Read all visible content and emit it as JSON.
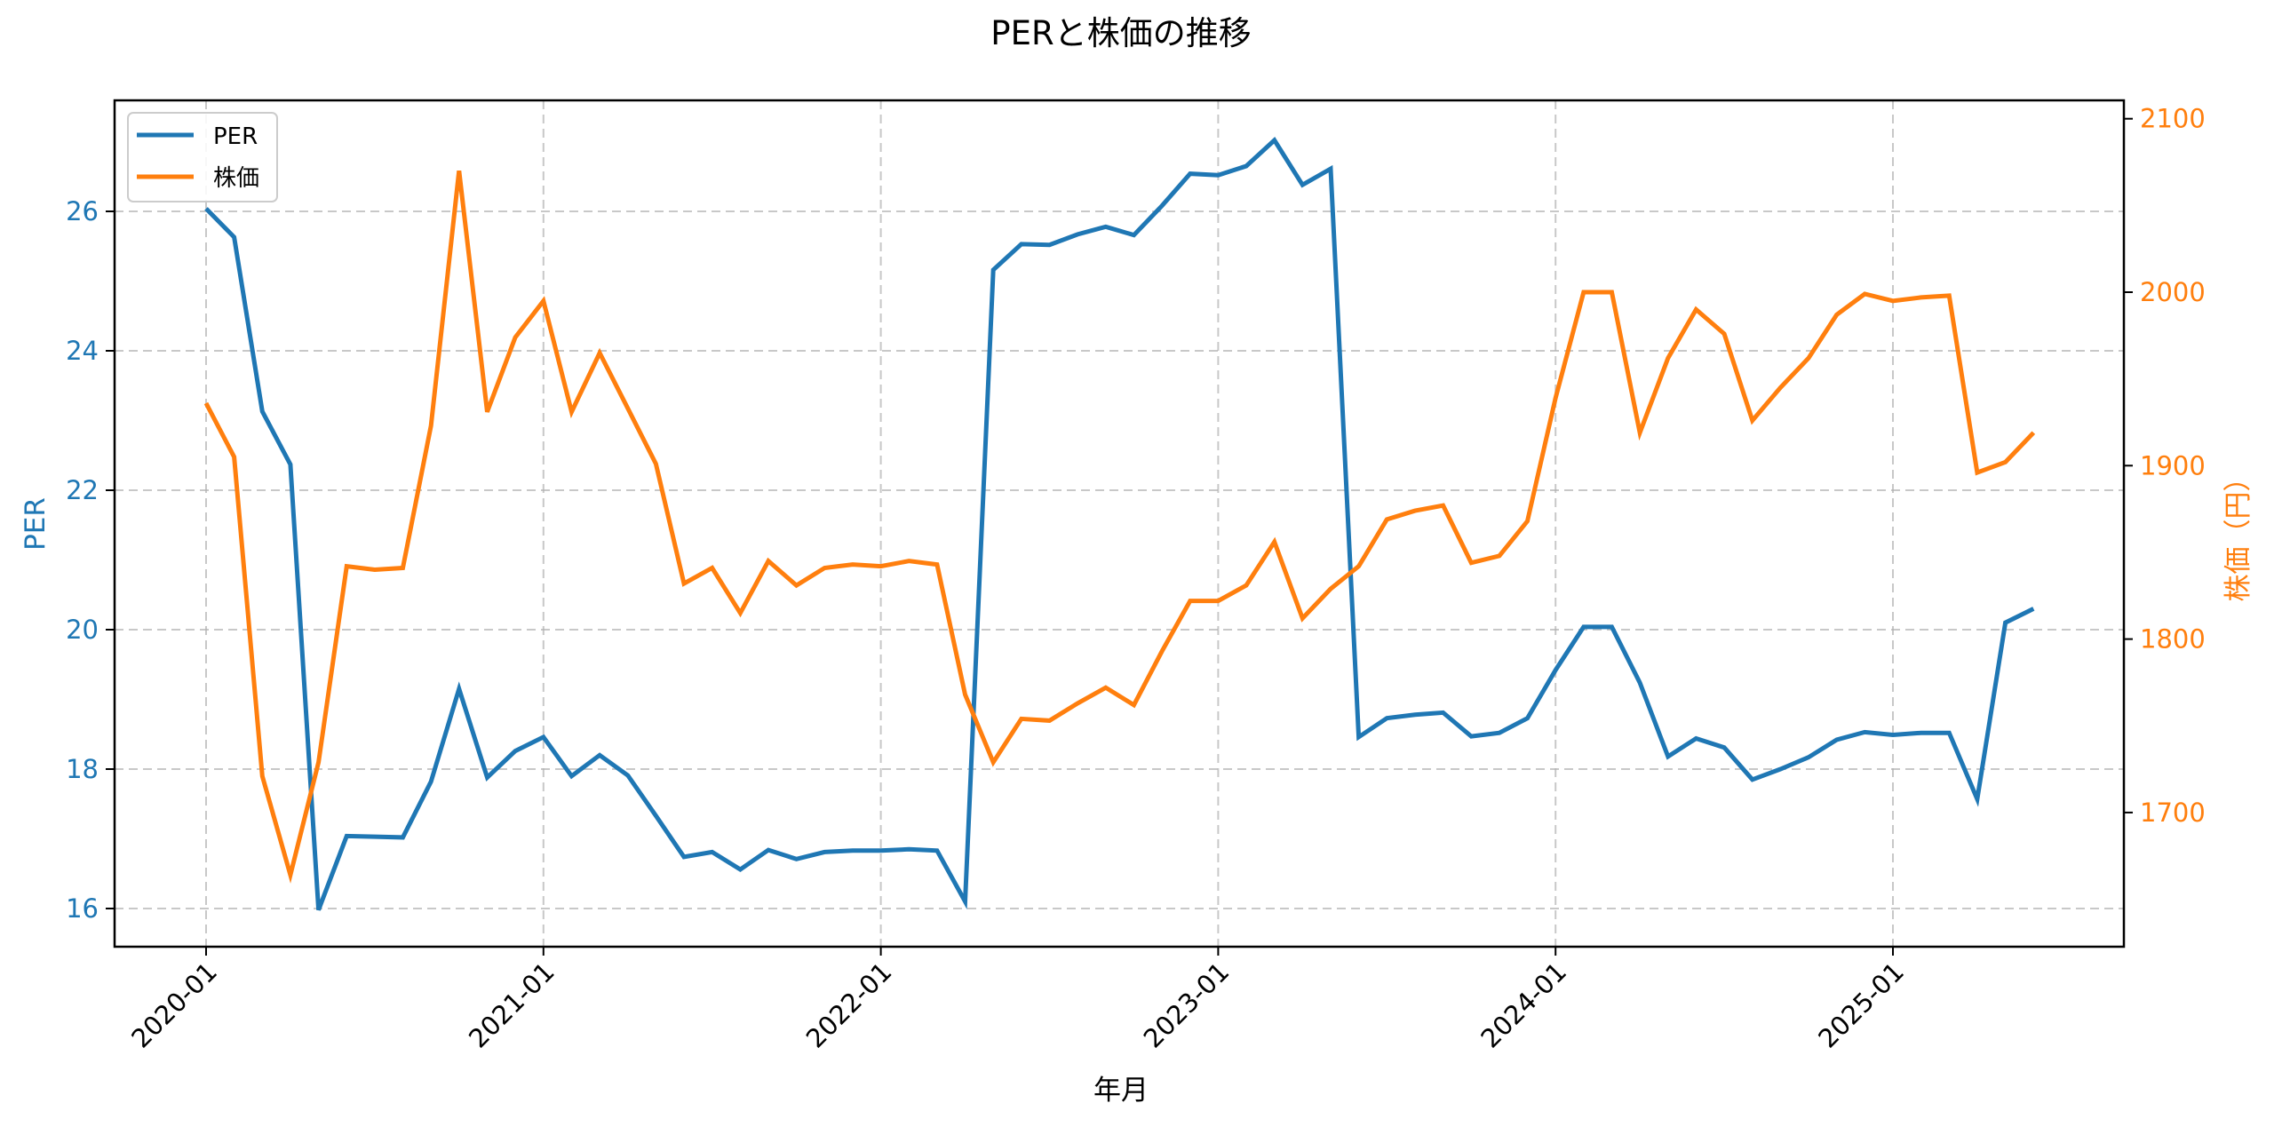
{
  "chart_data": {
    "type": "line",
    "title": "PERと株価の推移",
    "xlabel": "年月",
    "ylabel": "PER",
    "ylabel_right": "株価（円）",
    "x": [
      "2020-01",
      "2020-02",
      "2020-03",
      "2020-04",
      "2020-05",
      "2020-06",
      "2020-07",
      "2020-08",
      "2020-09",
      "2020-10",
      "2020-11",
      "2020-12",
      "2021-01",
      "2021-02",
      "2021-03",
      "2021-04",
      "2021-05",
      "2021-06",
      "2021-07",
      "2021-08",
      "2021-09",
      "2021-10",
      "2021-11",
      "2021-12",
      "2022-01",
      "2022-02",
      "2022-03",
      "2022-04",
      "2022-05",
      "2022-06",
      "2022-07",
      "2022-08",
      "2022-09",
      "2022-10",
      "2022-11",
      "2022-12",
      "2023-01",
      "2023-02",
      "2023-03",
      "2023-04",
      "2023-05",
      "2023-06",
      "2023-07",
      "2023-08",
      "2023-09",
      "2023-10",
      "2023-11",
      "2023-12",
      "2024-01",
      "2024-02",
      "2024-03",
      "2024-04",
      "2024-05",
      "2024-06",
      "2024-07",
      "2024-08",
      "2024-09",
      "2024-10",
      "2024-11",
      "2024-12",
      "2025-01",
      "2025-02",
      "2025-03",
      "2025-04",
      "2025-05",
      "2025-06"
    ],
    "series": [
      {
        "name": "PER",
        "axis": "left",
        "color": "#1f77b4",
        "values": [
          26.04,
          25.63,
          23.13,
          22.37,
          15.98,
          17.04,
          17.03,
          17.02,
          17.82,
          19.15,
          17.88,
          18.26,
          18.46,
          17.9,
          18.2,
          17.91,
          17.33,
          16.74,
          16.81,
          16.56,
          16.84,
          16.71,
          16.81,
          16.83,
          16.83,
          16.85,
          16.83,
          16.1,
          25.16,
          25.53,
          25.52,
          25.67,
          25.78,
          25.66,
          26.08,
          26.54,
          26.52,
          26.65,
          27.02,
          26.38,
          26.61,
          18.46,
          18.73,
          18.78,
          18.81,
          18.47,
          18.52,
          18.73,
          19.42,
          20.04,
          20.04,
          19.24,
          18.18,
          18.44,
          18.31,
          17.85,
          18.0,
          18.17,
          18.42,
          18.53,
          18.49,
          18.52,
          18.52,
          17.57,
          20.1,
          20.3
        ]
      },
      {
        "name": "株価",
        "axis": "right",
        "color": "#ff7f0e",
        "values": [
          1936,
          1905,
          1721,
          1664,
          1729,
          1842,
          1840,
          1841,
          1923,
          2070,
          1931,
          1974,
          1995,
          1931,
          1965,
          1933,
          1901,
          1832,
          1841,
          1815,
          1845,
          1831,
          1841,
          1843,
          1842,
          1845,
          1843,
          1768,
          1729,
          1754,
          1753,
          1763,
          1772,
          1762,
          1793,
          1822,
          1822,
          1831,
          1856,
          1812,
          1829,
          1842,
          1869,
          1874,
          1877,
          1844,
          1848,
          1868,
          1939,
          2000,
          2000,
          1919,
          1962,
          1990,
          1976,
          1926,
          1945,
          1962,
          1987,
          1999,
          1995,
          1997,
          1998,
          1896,
          1902,
          1919
        ]
      }
    ],
    "x_ticks": [
      "2020-01",
      "2021-01",
      "2022-01",
      "2023-01",
      "2024-01",
      "2025-01"
    ],
    "y_ticks_left": [
      16,
      18,
      20,
      22,
      24,
      26
    ],
    "y_ticks_right": [
      1700,
      1800,
      1900,
      2000,
      2100
    ],
    "ylim_left": [
      15.4,
      27.5
    ],
    "ylim_right": [
      1620,
      2110
    ],
    "grid": true,
    "legend_position": "upper left"
  },
  "colors": {
    "per": "#1f77b4",
    "price": "#ff7f0e",
    "grid": "#b0b0b0",
    "axis": "#000000"
  }
}
